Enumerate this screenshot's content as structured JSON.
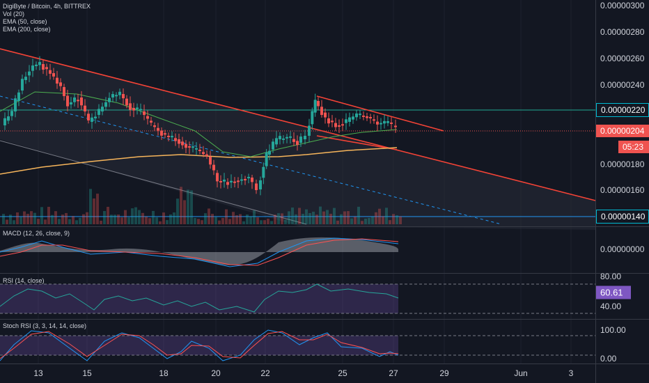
{
  "legend": {
    "symbol_line": "DigiByte / Bitcoin, 4h, BITTREX",
    "indicators": [
      "Vol (20)",
      "EMA (50, close)",
      "EMA (200, close)"
    ]
  },
  "panes": {
    "macd_label": "MACD (12, 26, close, 9)",
    "rsi_label": "RSI (14, close)",
    "stoch_label": "Stoch RSI (3, 3, 14, 14, close)"
  },
  "price_axis": {
    "labels": [
      "0.00000300",
      "0.00000280",
      "0.00000260",
      "0.00000240",
      "0.00000180",
      "0.00000160"
    ],
    "level_220": "0.00000220",
    "level_140": "0.00000140",
    "current_price": "0.00000204",
    "countdown": "05:23"
  },
  "macd_axis": {
    "zero": "0.00000000"
  },
  "rsi_axis": {
    "top": "80.00",
    "value": "60.61",
    "bottom": "40.00"
  },
  "stoch_axis": {
    "top": "100.00",
    "bottom": "0.00"
  },
  "time_axis": [
    "13",
    "15",
    "18",
    "20",
    "22",
    "25",
    "27",
    "29",
    "Jun",
    "3"
  ],
  "colors": {
    "background": "#131722",
    "up": "#26a69a",
    "down": "#ef5350",
    "trendline": "#f44336",
    "horizontal_level": "#22ab94",
    "ema50": "#4caf50",
    "ema200": "#f7b55b",
    "macd_line": "#2196f3",
    "signal_line": "#ff5252",
    "rsi_line": "#26a69a",
    "rsi_band": "#7e57c2"
  }
}
